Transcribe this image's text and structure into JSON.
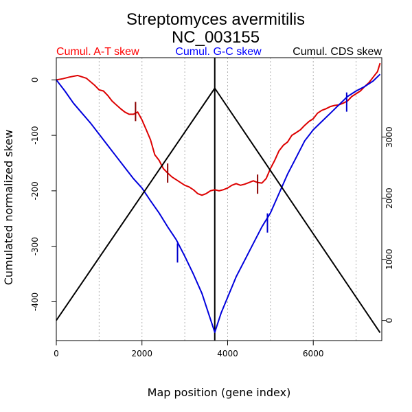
{
  "chart_data": {
    "type": "line",
    "title": "Streptomyces avermitilis",
    "subtitle": "NC_003155",
    "xlabel": "Map position (gene index)",
    "ylabel": "Cumulated normalized skew",
    "xlim": [
      0,
      7600
    ],
    "ylim_left": [
      -470,
      40
    ],
    "ylim_right": [
      -330,
      4300
    ],
    "x_ticks": [
      0,
      2000,
      4000,
      6000
    ],
    "x_tick_labels": [
      "0",
      "2000",
      "4000",
      "6000"
    ],
    "y_left_ticks": [
      0,
      -100,
      -200,
      -300,
      -400
    ],
    "y_left_tick_labels": [
      "0",
      "-100",
      "-200",
      "-300",
      "-400"
    ],
    "y_right_ticks": [
      0,
      1000,
      2000,
      3000
    ],
    "y_right_tick_labels": [
      "0",
      "1000",
      "2000",
      "3000"
    ],
    "vertical_gridlines": [
      1000,
      2000,
      3000,
      4000,
      5000,
      6000,
      7000
    ],
    "origin_line_x": 3700,
    "legend": [
      {
        "label": "Cumul. A-T skew",
        "color": "#ff0000"
      },
      {
        "label": "Cumul. G-C skew",
        "color": "#0000ff"
      },
      {
        "label": "Cumul. CDS skew",
        "color": "#000000"
      }
    ],
    "series": [
      {
        "name": "Cumul. A-T skew",
        "color": "#dd0000",
        "axis": "left",
        "x": [
          0,
          150,
          300,
          500,
          700,
          900,
          1000,
          1100,
          1200,
          1300,
          1400,
          1500,
          1600,
          1700,
          1800,
          1900,
          2000,
          2100,
          2200,
          2300,
          2400,
          2500,
          2600,
          2700,
          2800,
          2900,
          3000,
          3100,
          3200,
          3300,
          3400,
          3500,
          3600,
          3700,
          3800,
          3900,
          4000,
          4100,
          4200,
          4300,
          4400,
          4500,
          4600,
          4700,
          4800,
          4900,
          5000,
          5100,
          5200,
          5300,
          5400,
          5500,
          5600,
          5700,
          5800,
          5900,
          6000,
          6100,
          6200,
          6300,
          6400,
          6500,
          6600,
          6700,
          6800,
          6900,
          7000,
          7100,
          7200,
          7300,
          7400,
          7500,
          7560
        ],
        "values": [
          0,
          2,
          5,
          8,
          3,
          -10,
          -18,
          -20,
          -28,
          -38,
          -45,
          -52,
          -58,
          -62,
          -62,
          -58,
          -72,
          -90,
          -108,
          -135,
          -145,
          -160,
          -168,
          -175,
          -180,
          -185,
          -190,
          -193,
          -198,
          -205,
          -208,
          -205,
          -200,
          -198,
          -200,
          -198,
          -195,
          -190,
          -187,
          -190,
          -188,
          -185,
          -182,
          -185,
          -186,
          -178,
          -160,
          -145,
          -128,
          -118,
          -112,
          -100,
          -95,
          -90,
          -82,
          -75,
          -70,
          -60,
          -55,
          -52,
          -48,
          -46,
          -45,
          -42,
          -38,
          -30,
          -25,
          -20,
          -12,
          -5,
          5,
          15,
          30
        ]
      },
      {
        "name": "Cumul. G-C skew",
        "color": "#0000dd",
        "axis": "left",
        "x": [
          0,
          200,
          400,
          600,
          800,
          1000,
          1200,
          1400,
          1600,
          1800,
          2000,
          2200,
          2400,
          2600,
          2800,
          3000,
          3200,
          3400,
          3550,
          3700,
          3850,
          4000,
          4200,
          4400,
          4600,
          4800,
          5000,
          5200,
          5400,
          5600,
          5800,
          6000,
          6200,
          6400,
          6600,
          6800,
          7000,
          7200,
          7400,
          7560
        ],
        "values": [
          0,
          -20,
          -42,
          -60,
          -78,
          -98,
          -118,
          -138,
          -158,
          -178,
          -195,
          -218,
          -240,
          -265,
          -288,
          -318,
          -350,
          -385,
          -420,
          -455,
          -420,
          -392,
          -355,
          -325,
          -295,
          -265,
          -240,
          -205,
          -170,
          -140,
          -110,
          -90,
          -75,
          -60,
          -45,
          -30,
          -20,
          -12,
          -2,
          10
        ]
      },
      {
        "name": "Cumul. CDS skew",
        "color": "#000000",
        "axis": "right",
        "x": [
          0,
          3700,
          7560
        ],
        "values": [
          0,
          3800,
          -200
        ]
      }
    ],
    "markers": [
      {
        "series": "Cumul. A-T skew",
        "color": "#8b0000",
        "x": 1850,
        "y": -57
      },
      {
        "series": "Cumul. A-T skew",
        "color": "#8b0000",
        "x": 2600,
        "y": -168
      },
      {
        "series": "Cumul. A-T skew",
        "color": "#8b0000",
        "x": 4700,
        "y": -188
      },
      {
        "series": "Cumul. G-C skew",
        "color": "#0000cc",
        "x": 2830,
        "y": -312
      },
      {
        "series": "Cumul. G-C skew",
        "color": "#0000cc",
        "x": 4930,
        "y": -258
      },
      {
        "series": "Cumul. G-C skew",
        "color": "#0000cc",
        "x": 6780,
        "y": -40
      }
    ]
  }
}
